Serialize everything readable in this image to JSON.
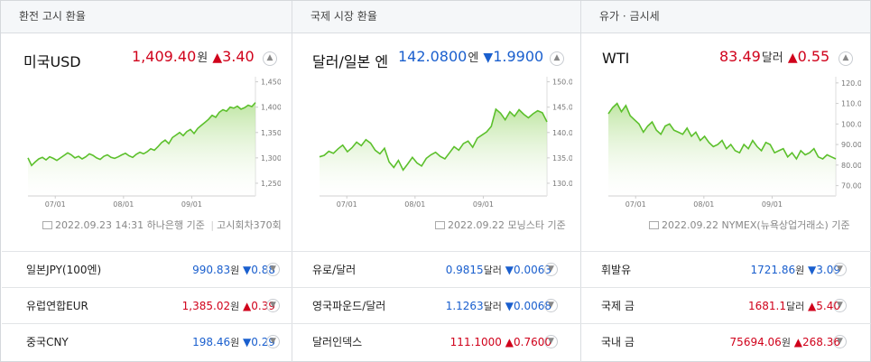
{
  "headers": [
    "환전 고시 환율",
    "국제 시장 환율",
    "유가 · 금시세"
  ],
  "panels": [
    {
      "title": "미국USD",
      "price": "1,409.40",
      "unit": "원",
      "dir": "▲",
      "change": "3.40",
      "color": "red",
      "source": "2022.09.23 14:31 하나은행 기준",
      "source_extra": "고시회차370회",
      "chart_data": {
        "type": "area",
        "xticks": [
          "07/01",
          "08/01",
          "09/01"
        ],
        "yticks": [
          "1,450",
          "1,400",
          "1,350",
          "1,300",
          "1,250"
        ],
        "ylim": [
          1225,
          1460
        ],
        "values": [
          1300,
          1285,
          1292,
          1298,
          1301,
          1296,
          1302,
          1299,
          1295,
          1300,
          1305,
          1310,
          1306,
          1300,
          1303,
          1298,
          1302,
          1308,
          1305,
          1300,
          1297,
          1303,
          1306,
          1301,
          1299,
          1302,
          1306,
          1309,
          1304,
          1301,
          1307,
          1311,
          1308,
          1312,
          1318,
          1315,
          1322,
          1330,
          1335,
          1328,
          1340,
          1345,
          1350,
          1344,
          1352,
          1356,
          1348,
          1358,
          1364,
          1370,
          1376,
          1384,
          1380,
          1390,
          1395,
          1392,
          1400,
          1398,
          1402,
          1396,
          1399,
          1404,
          1401,
          1409
        ]
      }
    },
    {
      "title": "달러/일본 엔",
      "price": "142.0800",
      "unit": "엔",
      "dir": "▼",
      "change": "1.9900",
      "color": "blue",
      "source": "2022.09.22 모닝스타 기준",
      "source_extra": "",
      "chart_data": {
        "type": "area",
        "xticks": [
          "07/01",
          "08/01",
          "09/01"
        ],
        "yticks": [
          "150.00",
          "145.00",
          "140.00",
          "135.00",
          "130.00"
        ],
        "ylim": [
          127.5,
          151
        ],
        "values": [
          135.2,
          135.5,
          136.3,
          135.9,
          136.8,
          137.5,
          136.2,
          137.0,
          138.1,
          137.4,
          138.6,
          137.9,
          136.5,
          135.8,
          136.9,
          134.2,
          133.1,
          134.5,
          132.6,
          133.8,
          135.1,
          134.0,
          133.4,
          134.9,
          135.6,
          136.1,
          135.3,
          134.8,
          136.0,
          137.2,
          136.5,
          137.8,
          138.3,
          137.1,
          138.9,
          139.5,
          140.1,
          141.2,
          144.6,
          143.8,
          142.5,
          144.1,
          143.2,
          144.5,
          143.6,
          142.9,
          143.7,
          144.3,
          143.9,
          142.1
        ]
      }
    },
    {
      "title": "WTI",
      "price": "83.49",
      "unit": "달러",
      "dir": "▲",
      "change": "0.55",
      "color": "red",
      "source": "2022.09.22 NYMEX(뉴욕상업거래소) 기준",
      "source_extra": "",
      "chart_data": {
        "type": "area",
        "xticks": [
          "07/01",
          "08/01",
          "09/01"
        ],
        "yticks": [
          "120.00",
          "110.00",
          "100.00",
          "90.00",
          "80.00",
          "70.00"
        ],
        "ylim": [
          65,
          123
        ],
        "values": [
          105,
          108,
          110,
          106,
          109,
          104,
          102,
          100,
          96,
          99,
          101,
          97,
          95,
          99,
          100,
          97,
          96,
          95,
          98,
          94,
          96,
          92,
          94,
          91,
          89,
          90,
          92,
          88,
          90,
          87,
          86,
          90,
          88,
          92,
          89,
          87,
          91,
          90,
          86,
          87,
          88,
          84,
          86,
          83,
          87,
          85,
          86,
          88,
          84,
          83,
          85,
          84,
          83
        ]
      }
    }
  ],
  "rows": [
    [
      {
        "name": "일본JPY(100엔)",
        "value": "990.83",
        "unit": "원",
        "dir": "▼",
        "change": "0.88",
        "color": "blue"
      },
      {
        "name": "유로/달러",
        "value": "0.9815",
        "unit": "달러",
        "dir": "▼",
        "change": "0.0063",
        "color": "blue"
      },
      {
        "name": "휘발유",
        "value": "1721.86",
        "unit": "원",
        "dir": "▼",
        "change": "3.09",
        "color": "blue"
      }
    ],
    [
      {
        "name": "유럽연합EUR",
        "value": "1,385.02",
        "unit": "원",
        "dir": "▲",
        "change": "0.39",
        "color": "red"
      },
      {
        "name": "영국파운드/달러",
        "value": "1.1263",
        "unit": "달러",
        "dir": "▼",
        "change": "0.0068",
        "color": "blue"
      },
      {
        "name": "국제 금",
        "value": "1681.1",
        "unit": "달러",
        "dir": "▲",
        "change": "5.40",
        "color": "red"
      }
    ],
    [
      {
        "name": "중국CNY",
        "value": "198.46",
        "unit": "원",
        "dir": "▼",
        "change": "0.29",
        "color": "blue"
      },
      {
        "name": "달러인덱스",
        "value": "111.1000",
        "unit": "",
        "dir": "▲",
        "change": "0.7600",
        "color": "red"
      },
      {
        "name": "국내 금",
        "value": "75694.06",
        "unit": "원",
        "dir": "▲",
        "change": "268.36",
        "color": "red"
      }
    ]
  ],
  "colors": {
    "red": "#d0021b",
    "blue": "#1a5fce",
    "line": "#5cc02c",
    "fill": "#d6f0c4"
  },
  "icons": {
    "expand": "chevron-up-icon",
    "row": "chevron-down-icon",
    "source": "calendar-icon"
  }
}
